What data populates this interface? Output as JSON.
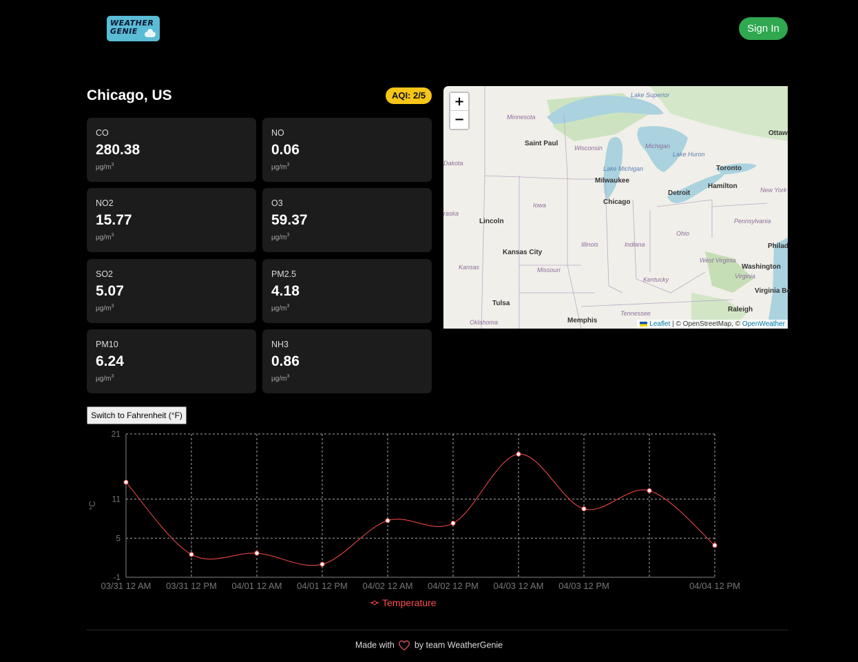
{
  "header": {
    "logo_line1": "WEATHER",
    "logo_line2": "GENIE",
    "signin_label": "Sign In"
  },
  "location": {
    "city": "Chicago, US",
    "aqi": "AQI: 2/5"
  },
  "pollutants": [
    {
      "name": "CO",
      "value": "280.38",
      "unit": "µg/m",
      "unit_sup": "3"
    },
    {
      "name": "NO",
      "value": "0.06",
      "unit": "µg/m",
      "unit_sup": "3"
    },
    {
      "name": "NO2",
      "value": "15.77",
      "unit": "µg/m",
      "unit_sup": "3"
    },
    {
      "name": "O3",
      "value": "59.37",
      "unit": "µg/m",
      "unit_sup": "3"
    },
    {
      "name": "SO2",
      "value": "5.07",
      "unit": "µg/m",
      "unit_sup": "3"
    },
    {
      "name": "PM2.5",
      "value": "4.18",
      "unit": "µg/m",
      "unit_sup": "3"
    },
    {
      "name": "PM10",
      "value": "6.24",
      "unit": "µg/m",
      "unit_sup": "3"
    },
    {
      "name": "NH3",
      "value": "0.86",
      "unit": "µg/m",
      "unit_sup": "3"
    }
  ],
  "map": {
    "zoom_in": "+",
    "zoom_out": "−",
    "attribution_leaflet": "Leaflet",
    "attribution_sep": " | © OpenStreetMap, © ",
    "attribution_ow": "OpenWeather",
    "labels": [
      {
        "text": "Minnesota",
        "kind": "st"
      },
      {
        "text": "Saint Paul",
        "kind": "city"
      },
      {
        "text": "Wisconsin",
        "kind": "st"
      },
      {
        "text": "Michigan",
        "kind": "st"
      },
      {
        "text": "Lake Superior",
        "kind": "lk"
      },
      {
        "text": "Lake Huron",
        "kind": "lk"
      },
      {
        "text": "Lake Michigan",
        "kind": "lk"
      },
      {
        "text": "Ottaw",
        "kind": "city"
      },
      {
        "text": "Dakota",
        "kind": "st"
      },
      {
        "text": "Milwaukee",
        "kind": "city"
      },
      {
        "text": "Toronto",
        "kind": "city"
      },
      {
        "text": "Hamilton",
        "kind": "city"
      },
      {
        "text": "Detroit",
        "kind": "city"
      },
      {
        "text": "New York",
        "kind": "st"
      },
      {
        "text": "Chicago",
        "kind": "city"
      },
      {
        "text": "Iowa",
        "kind": "st"
      },
      {
        "text": "raska",
        "kind": "st"
      },
      {
        "text": "Lincoln",
        "kind": "city"
      },
      {
        "text": "Pennsylvania",
        "kind": "st"
      },
      {
        "text": "Ohio",
        "kind": "st"
      },
      {
        "text": "Illinois",
        "kind": "st"
      },
      {
        "text": "Indiana",
        "kind": "st"
      },
      {
        "text": "Philad",
        "kind": "city"
      },
      {
        "text": "Kansas City",
        "kind": "city"
      },
      {
        "text": "West Virginia",
        "kind": "st"
      },
      {
        "text": "Kansas",
        "kind": "st"
      },
      {
        "text": "Missouri",
        "kind": "st"
      },
      {
        "text": "Washington",
        "kind": "city"
      },
      {
        "text": "Virginia",
        "kind": "st"
      },
      {
        "text": "Kentucky",
        "kind": "st"
      },
      {
        "text": "Virginia Be",
        "kind": "city"
      },
      {
        "text": "Tulsa",
        "kind": "city"
      },
      {
        "text": "Raleigh",
        "kind": "city"
      },
      {
        "text": "Tennessee",
        "kind": "st"
      },
      {
        "text": "Oklahoma",
        "kind": "st"
      },
      {
        "text": "Memphis",
        "kind": "city"
      }
    ]
  },
  "toggle": {
    "label": "Switch to Fahrenheit (°F)"
  },
  "chart_data": {
    "type": "line",
    "title": "",
    "ylabel": "°C",
    "xlabel": "",
    "ylim": [
      -1,
      21
    ],
    "yticks": [
      -1,
      5,
      11,
      21
    ],
    "x": [
      "03/31 12 AM",
      "03/31 12 PM",
      "04/01 12 AM",
      "04/01 12 PM",
      "04/02 12 AM",
      "04/02 12 PM",
      "04/03 12 AM",
      "04/03 12 PM",
      "",
      "04/04 12 PM"
    ],
    "series": [
      {
        "name": "Temperature",
        "color": "#ff4d4d",
        "values": [
          13.6,
          2.5,
          2.7,
          1.0,
          7.7,
          7.3,
          17.9,
          9.5,
          12.3,
          3.9
        ]
      }
    ],
    "legend": "bottom",
    "grid": true
  },
  "footer": {
    "prefix": "Made with",
    "suffix": "by team WeatherGenie"
  }
}
